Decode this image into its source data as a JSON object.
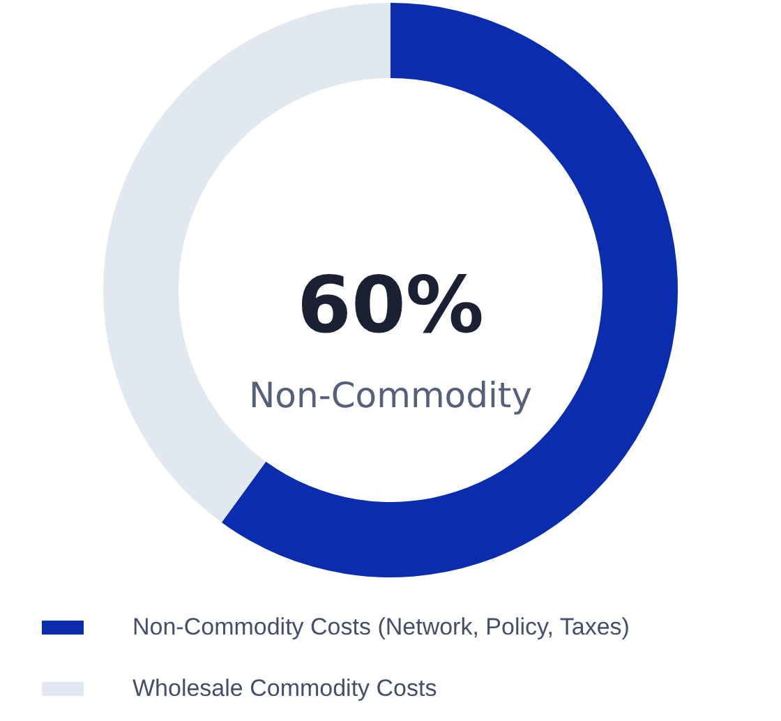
{
  "chart_data": {
    "type": "donut",
    "categories": [
      "Non-Commodity Costs (Network, Policy, Taxes)",
      "Wholesale Commodity Costs"
    ],
    "values": [
      60,
      40
    ],
    "colors": [
      "#0a2db0",
      "#e2e8f0"
    ],
    "annotations": [
      "60%",
      "Non-Commodity"
    ],
    "legend": "bottom"
  }
}
